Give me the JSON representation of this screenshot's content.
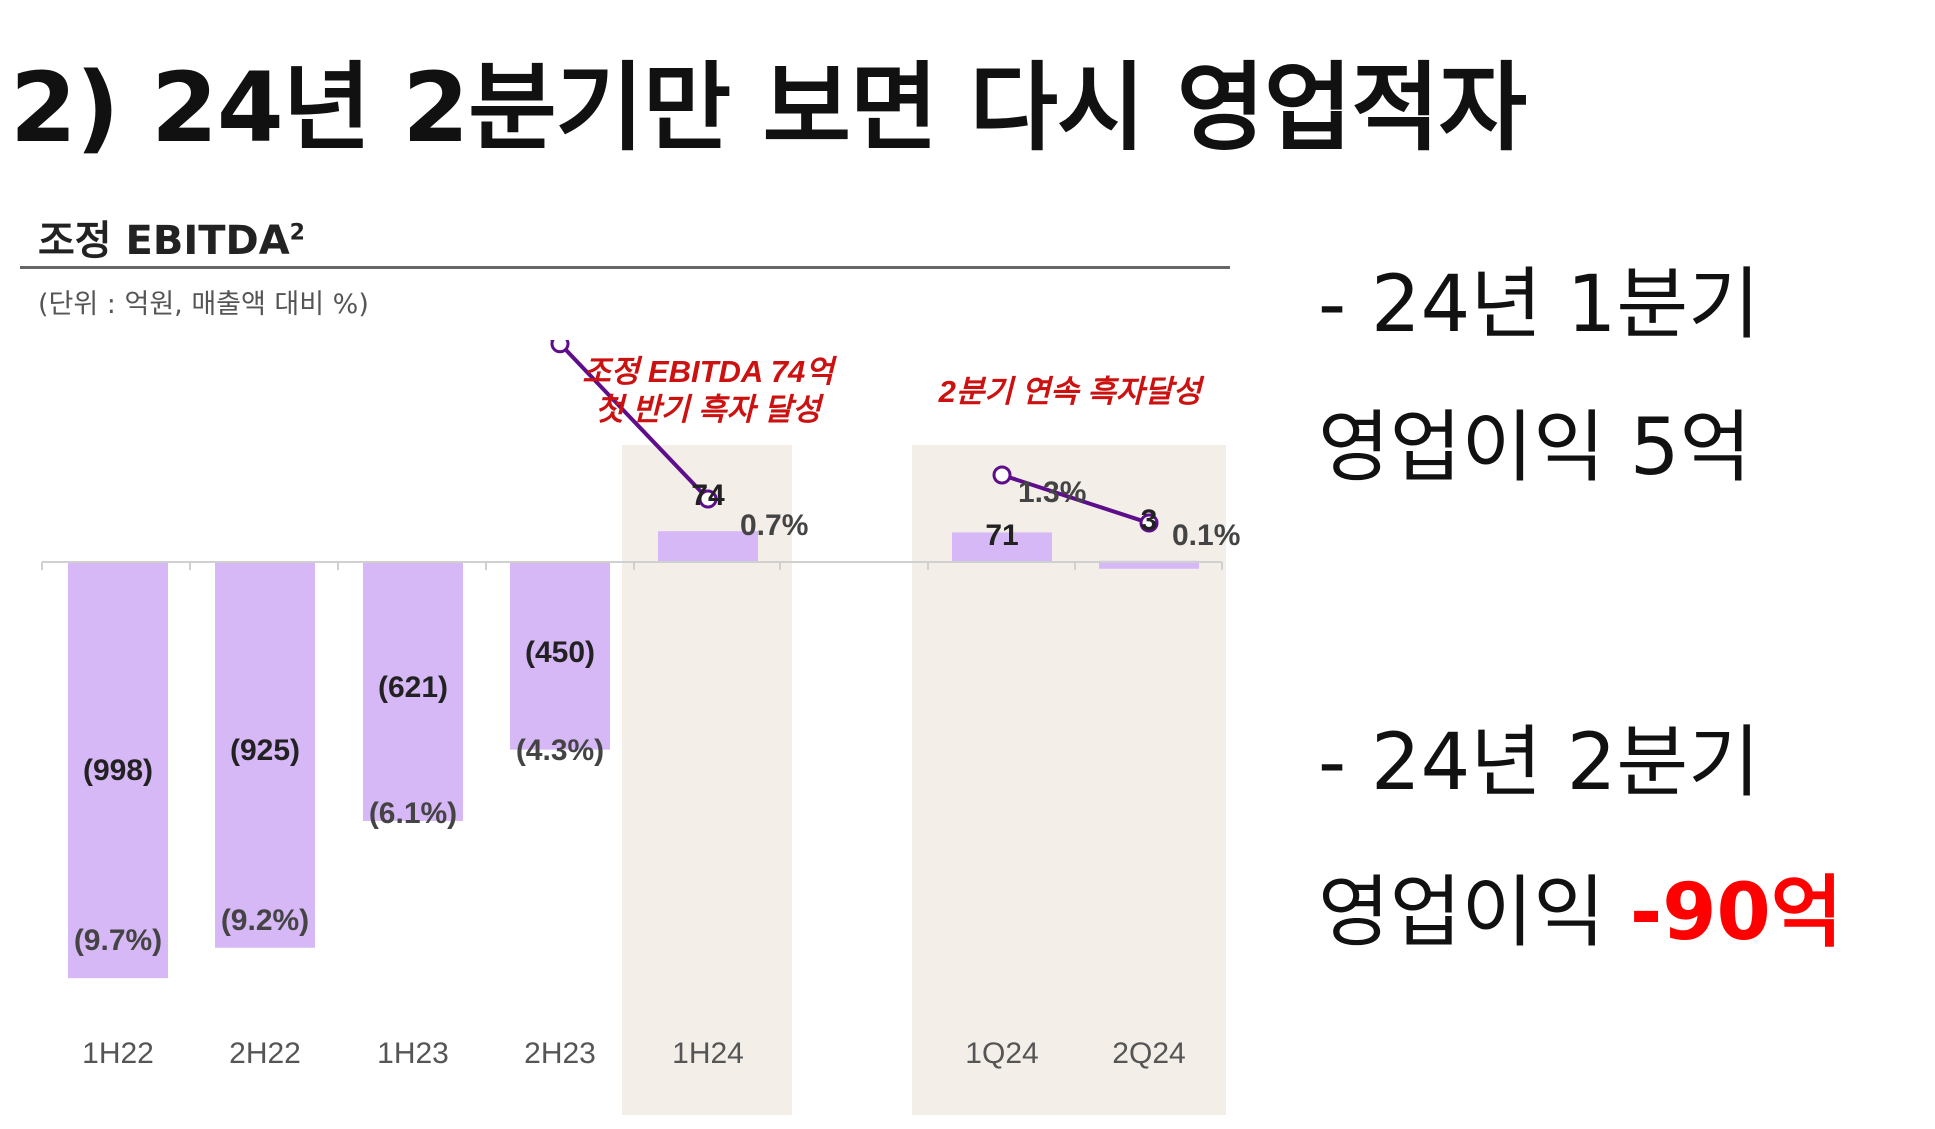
{
  "heading": "2) 24년 2분기만 보면 다시 영업적자",
  "panel": {
    "title": "조정 EBITDA",
    "title_sup": "2",
    "subtitle": "(단위 : 억원, 매출액 대비 %)"
  },
  "side_notes": {
    "q1_line1": "- 24년 1분기",
    "q1_line2": "영업이익 5억",
    "q2_line1": "-   24년 2분기",
    "q2_line2_prefix": "영업이익 ",
    "q2_line2_value": "-90억"
  },
  "colors": {
    "bar": "#d7b8f7",
    "line": "#5e0d8b",
    "highlight_bg": "#f3efe8",
    "callout": "#cc1111",
    "negative_note": "#ff0000"
  },
  "chart_data": {
    "type": "bar",
    "categories": [
      "1H22",
      "2H22",
      "1H23",
      "2H23",
      "1H24",
      "1Q24",
      "2Q24"
    ],
    "series": [
      {
        "values": [
          -998,
          -925,
          -621,
          -450,
          74,
          71,
          3
        ],
        "labels": [
          "(998)",
          "(925)",
          "(621)",
          "(450)",
          "74",
          "71",
          "3"
        ]
      },
      {
        "values": [
          -9.7,
          -9.2,
          -6.1,
          -4.3,
          0.7,
          1.3,
          0.1
        ],
        "labels": [
          "(9.7%)",
          "(9.2%)",
          "(6.1%)",
          "(4.3%)",
          "0.7%",
          "1.3%",
          "0.1%"
        ]
      }
    ],
    "line_segments": [
      [
        0,
        1,
        2,
        3,
        4
      ],
      [
        5,
        6
      ]
    ],
    "highlighted_categories": [
      "1H24",
      "1Q24",
      "2Q24"
    ],
    "annotations": [
      {
        "text_line1": "조정 EBITDA 74억",
        "text_line2": "첫 반기 흑자 달성",
        "over": "1H24"
      },
      {
        "text_line1": "2분기 연속 흑자달성",
        "text_line2": "",
        "over": "1Q24-2Q24"
      }
    ],
    "grid": false
  }
}
